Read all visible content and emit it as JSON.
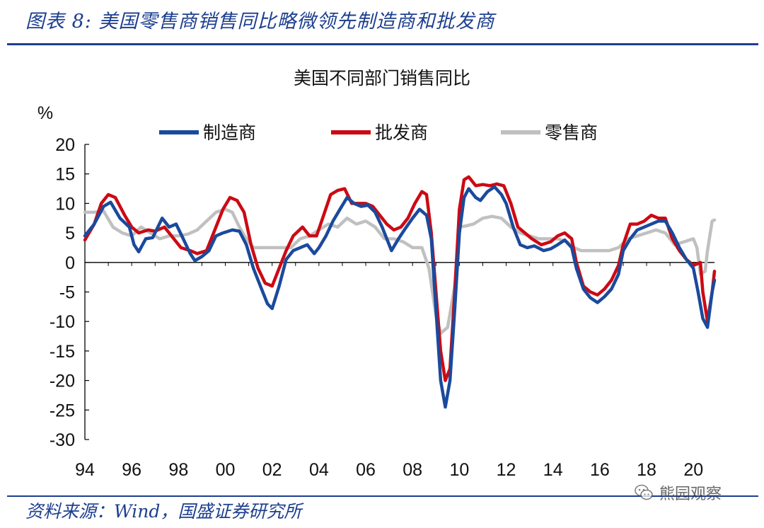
{
  "figure": {
    "label": "图表 8:",
    "title": "美国零售商销售同比略微领先制造商和批发商",
    "source": "资料来源：Wind，国盛证券研究所",
    "watermark": "熊园观察",
    "watermark_icon": "wechat-icon"
  },
  "colors": {
    "manufacturers": "#1a4a9c",
    "wholesalers": "#cc0a14",
    "retailers": "#c0c0c0"
  },
  "chart_data": {
    "type": "line",
    "title": "美国不同部门销售同比",
    "ylabel": "%",
    "ylim": [
      -30,
      20
    ],
    "yticks": [
      20,
      15,
      10,
      5,
      0,
      -5,
      -10,
      -15,
      -20,
      -25,
      -30
    ],
    "xlim": [
      1994,
      2020.9
    ],
    "xticks": [
      1994,
      1996,
      1998,
      2000,
      2002,
      2004,
      2006,
      2008,
      2010,
      2012,
      2014,
      2016,
      2018,
      2020
    ],
    "xtick_labels": [
      "94",
      "96",
      "98",
      "00",
      "02",
      "04",
      "06",
      "08",
      "10",
      "12",
      "14",
      "16",
      "18",
      "20"
    ],
    "grid": false,
    "legend": "top-center",
    "series": [
      {
        "name": "制造商",
        "points": [
          [
            1994.0,
            4.5
          ],
          [
            1994.4,
            6.5
          ],
          [
            1994.8,
            9.5
          ],
          [
            1995.1,
            10.2
          ],
          [
            1995.5,
            7.5
          ],
          [
            1995.9,
            6
          ],
          [
            1996.1,
            3
          ],
          [
            1996.3,
            1.8
          ],
          [
            1996.6,
            4
          ],
          [
            1996.9,
            4.2
          ],
          [
            1997.3,
            7.5
          ],
          [
            1997.6,
            6
          ],
          [
            1997.9,
            6.5
          ],
          [
            1998.2,
            4
          ],
          [
            1998.5,
            1.5
          ],
          [
            1998.7,
            0.3
          ],
          [
            1999.0,
            1
          ],
          [
            1999.3,
            2
          ],
          [
            1999.6,
            4.5
          ],
          [
            1999.9,
            5
          ],
          [
            2000.3,
            5.5
          ],
          [
            2000.6,
            5.3
          ],
          [
            2000.9,
            3
          ],
          [
            2001.2,
            -1
          ],
          [
            2001.5,
            -4
          ],
          [
            2001.8,
            -7
          ],
          [
            2002.0,
            -7.8
          ],
          [
            2002.3,
            -4
          ],
          [
            2002.6,
            0.5
          ],
          [
            2002.9,
            2
          ],
          [
            2003.2,
            2.5
          ],
          [
            2003.5,
            3
          ],
          [
            2003.8,
            1.5
          ],
          [
            2004.0,
            2.5
          ],
          [
            2004.3,
            4.5
          ],
          [
            2004.6,
            7
          ],
          [
            2004.9,
            9
          ],
          [
            2005.2,
            11
          ],
          [
            2005.5,
            10
          ],
          [
            2005.8,
            9.5
          ],
          [
            2006.1,
            9.7
          ],
          [
            2006.4,
            8.5
          ],
          [
            2006.7,
            6
          ],
          [
            2006.9,
            4
          ],
          [
            2007.1,
            2
          ],
          [
            2007.4,
            4
          ],
          [
            2007.7,
            5.8
          ],
          [
            2008.0,
            7.5
          ],
          [
            2008.3,
            9
          ],
          [
            2008.6,
            8
          ],
          [
            2008.8,
            4
          ],
          [
            2009.0,
            -8
          ],
          [
            2009.2,
            -20
          ],
          [
            2009.4,
            -24.5
          ],
          [
            2009.6,
            -20
          ],
          [
            2009.8,
            -8
          ],
          [
            2010.0,
            5
          ],
          [
            2010.2,
            11
          ],
          [
            2010.4,
            12.5
          ],
          [
            2010.7,
            11
          ],
          [
            2010.9,
            10.5
          ],
          [
            2011.2,
            12
          ],
          [
            2011.5,
            12.8
          ],
          [
            2011.8,
            11.5
          ],
          [
            2012.0,
            10
          ],
          [
            2012.3,
            6
          ],
          [
            2012.6,
            3
          ],
          [
            2012.9,
            2.5
          ],
          [
            2013.2,
            2.8
          ],
          [
            2013.6,
            2
          ],
          [
            2013.9,
            2.3
          ],
          [
            2014.2,
            3
          ],
          [
            2014.5,
            3.8
          ],
          [
            2014.8,
            2.5
          ],
          [
            2015.0,
            -1
          ],
          [
            2015.3,
            -4.5
          ],
          [
            2015.6,
            -6
          ],
          [
            2015.9,
            -6.8
          ],
          [
            2016.2,
            -5.8
          ],
          [
            2016.5,
            -4.5
          ],
          [
            2016.8,
            -2
          ],
          [
            2017.0,
            2
          ],
          [
            2017.3,
            4
          ],
          [
            2017.6,
            5.5
          ],
          [
            2017.9,
            6
          ],
          [
            2018.2,
            6.5
          ],
          [
            2018.5,
            7
          ],
          [
            2018.8,
            7
          ],
          [
            2019.1,
            5
          ],
          [
            2019.4,
            2.5
          ],
          [
            2019.7,
            0.5
          ],
          [
            2020.0,
            -1
          ],
          [
            2020.2,
            -5
          ],
          [
            2020.4,
            -9.5
          ],
          [
            2020.6,
            -11
          ],
          [
            2020.8,
            -5
          ],
          [
            2020.9,
            -3
          ]
        ]
      },
      {
        "name": "批发商",
        "points": [
          [
            1994.0,
            3.8
          ],
          [
            1994.4,
            6.5
          ],
          [
            1994.7,
            10
          ],
          [
            1995.0,
            11.5
          ],
          [
            1995.3,
            11
          ],
          [
            1995.7,
            8
          ],
          [
            1996.0,
            6
          ],
          [
            1996.3,
            5
          ],
          [
            1996.7,
            5.5
          ],
          [
            1997.0,
            5.3
          ],
          [
            1997.4,
            6
          ],
          [
            1997.8,
            4
          ],
          [
            1998.1,
            2.5
          ],
          [
            1998.5,
            2
          ],
          [
            1998.8,
            1.5
          ],
          [
            1999.2,
            2
          ],
          [
            1999.5,
            5
          ],
          [
            1999.9,
            9
          ],
          [
            2000.2,
            11
          ],
          [
            2000.5,
            10.5
          ],
          [
            2000.8,
            8.5
          ],
          [
            2001.1,
            3
          ],
          [
            2001.4,
            -1
          ],
          [
            2001.7,
            -3.5
          ],
          [
            2002.0,
            -4
          ],
          [
            2002.3,
            -1
          ],
          [
            2002.6,
            2
          ],
          [
            2002.9,
            4.5
          ],
          [
            2003.3,
            6
          ],
          [
            2003.6,
            4.5
          ],
          [
            2003.9,
            4.5
          ],
          [
            2004.2,
            8
          ],
          [
            2004.5,
            11.5
          ],
          [
            2004.8,
            12.2
          ],
          [
            2005.1,
            12.5
          ],
          [
            2005.4,
            10
          ],
          [
            2005.7,
            10
          ],
          [
            2006.0,
            10
          ],
          [
            2006.3,
            9.5
          ],
          [
            2006.6,
            8
          ],
          [
            2006.9,
            6.5
          ],
          [
            2007.2,
            5.5
          ],
          [
            2007.5,
            6
          ],
          [
            2007.8,
            7.5
          ],
          [
            2008.1,
            10
          ],
          [
            2008.4,
            12
          ],
          [
            2008.6,
            11.5
          ],
          [
            2008.8,
            5
          ],
          [
            2009.0,
            -5
          ],
          [
            2009.2,
            -15
          ],
          [
            2009.4,
            -20
          ],
          [
            2009.6,
            -18
          ],
          [
            2009.8,
            -5
          ],
          [
            2010.0,
            9
          ],
          [
            2010.2,
            14
          ],
          [
            2010.4,
            14.5
          ],
          [
            2010.7,
            13
          ],
          [
            2011.0,
            13.2
          ],
          [
            2011.3,
            13
          ],
          [
            2011.6,
            13.3
          ],
          [
            2011.9,
            13
          ],
          [
            2012.2,
            10
          ],
          [
            2012.5,
            6
          ],
          [
            2012.8,
            5
          ],
          [
            2013.1,
            4
          ],
          [
            2013.5,
            3
          ],
          [
            2013.9,
            3.5
          ],
          [
            2014.2,
            4.5
          ],
          [
            2014.5,
            5
          ],
          [
            2014.8,
            4
          ],
          [
            2015.0,
            0
          ],
          [
            2015.3,
            -4
          ],
          [
            2015.6,
            -5
          ],
          [
            2015.9,
            -5.5
          ],
          [
            2016.2,
            -4.5
          ],
          [
            2016.5,
            -3
          ],
          [
            2016.8,
            -0.5
          ],
          [
            2017.0,
            3
          ],
          [
            2017.3,
            6.5
          ],
          [
            2017.6,
            6.5
          ],
          [
            2017.9,
            7
          ],
          [
            2018.2,
            8
          ],
          [
            2018.5,
            7.5
          ],
          [
            2018.8,
            7.5
          ],
          [
            2019.1,
            4
          ],
          [
            2019.4,
            2
          ],
          [
            2019.7,
            0.5
          ],
          [
            2020.0,
            -0.5
          ],
          [
            2020.3,
            0
          ],
          [
            2020.4,
            -5
          ],
          [
            2020.6,
            -10
          ],
          [
            2020.8,
            -5
          ],
          [
            2020.9,
            -1.5
          ]
        ]
      },
      {
        "name": "零售商",
        "points": [
          [
            1994.0,
            8.5
          ],
          [
            1994.4,
            8.5
          ],
          [
            1994.8,
            8.7
          ],
          [
            1995.2,
            6
          ],
          [
            1995.6,
            5
          ],
          [
            1996.0,
            4.5
          ],
          [
            1996.4,
            6
          ],
          [
            1996.8,
            5
          ],
          [
            1997.2,
            4
          ],
          [
            1997.6,
            4.5
          ],
          [
            1998.0,
            4.5
          ],
          [
            1998.4,
            4.8
          ],
          [
            1998.8,
            5.5
          ],
          [
            1999.2,
            7
          ],
          [
            1999.6,
            8.5
          ],
          [
            2000.0,
            9
          ],
          [
            2000.3,
            8.5
          ],
          [
            2000.6,
            6
          ],
          [
            2000.9,
            4
          ],
          [
            2001.2,
            2.5
          ],
          [
            2001.6,
            2.5
          ],
          [
            2002.0,
            2.5
          ],
          [
            2002.4,
            2.5
          ],
          [
            2002.8,
            2.5
          ],
          [
            2003.2,
            4
          ],
          [
            2003.6,
            4.5
          ],
          [
            2004.0,
            5.5
          ],
          [
            2004.4,
            6.5
          ],
          [
            2004.8,
            6
          ],
          [
            2005.2,
            7.5
          ],
          [
            2005.6,
            6.5
          ],
          [
            2006.0,
            7
          ],
          [
            2006.4,
            6
          ],
          [
            2006.8,
            4
          ],
          [
            2007.2,
            4
          ],
          [
            2007.6,
            3.5
          ],
          [
            2008.0,
            2.5
          ],
          [
            2008.4,
            2.5
          ],
          [
            2008.7,
            -1
          ],
          [
            2009.0,
            -9
          ],
          [
            2009.2,
            -12
          ],
          [
            2009.5,
            -11
          ],
          [
            2009.8,
            -4
          ],
          [
            2010.0,
            6
          ],
          [
            2010.3,
            6.2
          ],
          [
            2010.6,
            6.5
          ],
          [
            2011.0,
            7.5
          ],
          [
            2011.4,
            7.8
          ],
          [
            2011.8,
            7.5
          ],
          [
            2012.2,
            6
          ],
          [
            2012.6,
            5
          ],
          [
            2013.0,
            4.5
          ],
          [
            2013.4,
            4
          ],
          [
            2013.8,
            4
          ],
          [
            2014.2,
            4
          ],
          [
            2014.6,
            3.5
          ],
          [
            2014.9,
            2.5
          ],
          [
            2015.2,
            2
          ],
          [
            2015.6,
            2
          ],
          [
            2016.0,
            2
          ],
          [
            2016.4,
            2
          ],
          [
            2016.8,
            2.5
          ],
          [
            2017.2,
            4
          ],
          [
            2017.6,
            4.5
          ],
          [
            2018.0,
            5
          ],
          [
            2018.4,
            5.5
          ],
          [
            2018.8,
            5
          ],
          [
            2019.2,
            3
          ],
          [
            2019.6,
            3.5
          ],
          [
            2020.0,
            4
          ],
          [
            2020.15,
            2.5
          ],
          [
            2020.3,
            -2
          ],
          [
            2020.5,
            -1.5
          ],
          [
            2020.6,
            2
          ],
          [
            2020.8,
            7
          ],
          [
            2020.9,
            7.2
          ]
        ]
      }
    ]
  }
}
